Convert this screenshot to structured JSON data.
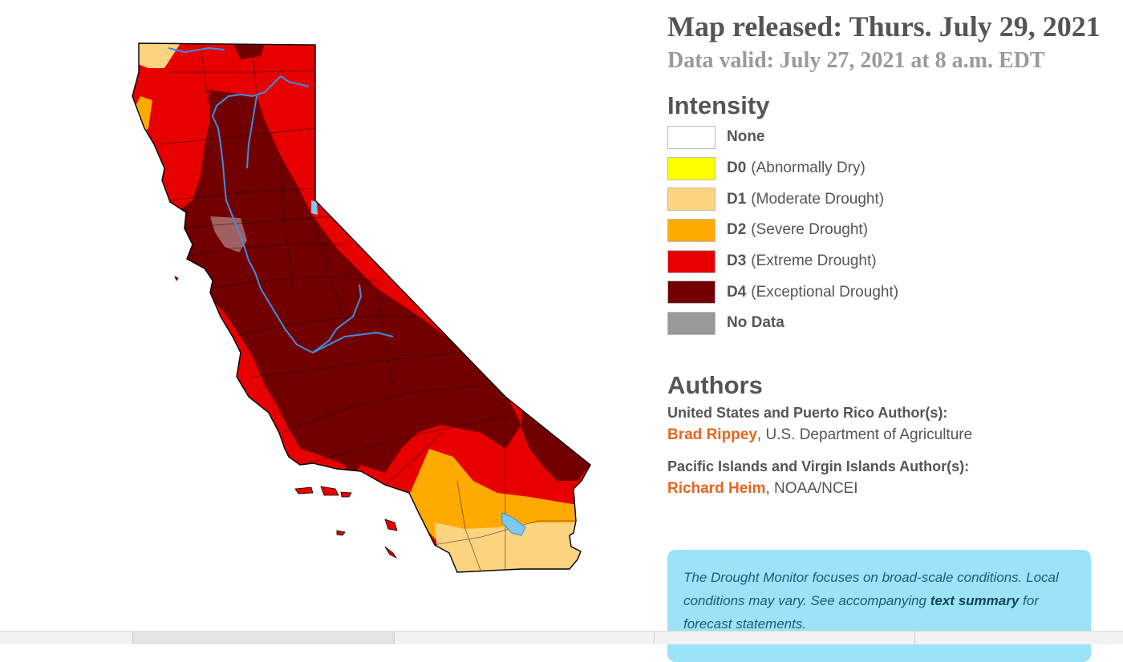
{
  "header": {
    "released": "Map released: Thurs. July 29, 2021",
    "valid": "Data valid: July 27, 2021 at 8 a.m. EDT"
  },
  "intensity": {
    "title": "Intensity",
    "items": [
      {
        "code": "None",
        "desc": "",
        "color": "#ffffff"
      },
      {
        "code": "D0",
        "desc": "(Abnormally Dry)",
        "color": "#ffff00"
      },
      {
        "code": "D1",
        "desc": "(Moderate Drought)",
        "color": "#fcd37f"
      },
      {
        "code": "D2",
        "desc": "(Severe Drought)",
        "color": "#ffaa00"
      },
      {
        "code": "D3",
        "desc": "(Extreme Drought)",
        "color": "#e60000"
      },
      {
        "code": "D4",
        "desc": "(Exceptional Drought)",
        "color": "#730000"
      },
      {
        "code": "No Data",
        "desc": "",
        "color": "#999999"
      }
    ]
  },
  "authors": {
    "title": "Authors",
    "us_heading": "United States and Puerto Rico Author(s):",
    "us_name": "Brad Rippey",
    "us_org": ", U.S. Department of Agriculture",
    "pac_heading": "Pacific Islands and Virgin Islands Author(s):",
    "pac_name": "Richard Heim",
    "pac_org": ", NOAA/NCEI"
  },
  "note": {
    "text_before": "The Drought Monitor focuses on broad-scale conditions. Local conditions may vary. See accompanying ",
    "link": "text summary",
    "text_after": " for forecast statements."
  },
  "map": {
    "state": "California",
    "colors": {
      "d1": "#fcd37f",
      "d2": "#ffaa00",
      "d3": "#e60000",
      "d4": "#730000",
      "nodata": "#a06060",
      "water": "#7fc8ef",
      "river": "#3b8fe0",
      "county_line": "#000000"
    }
  }
}
